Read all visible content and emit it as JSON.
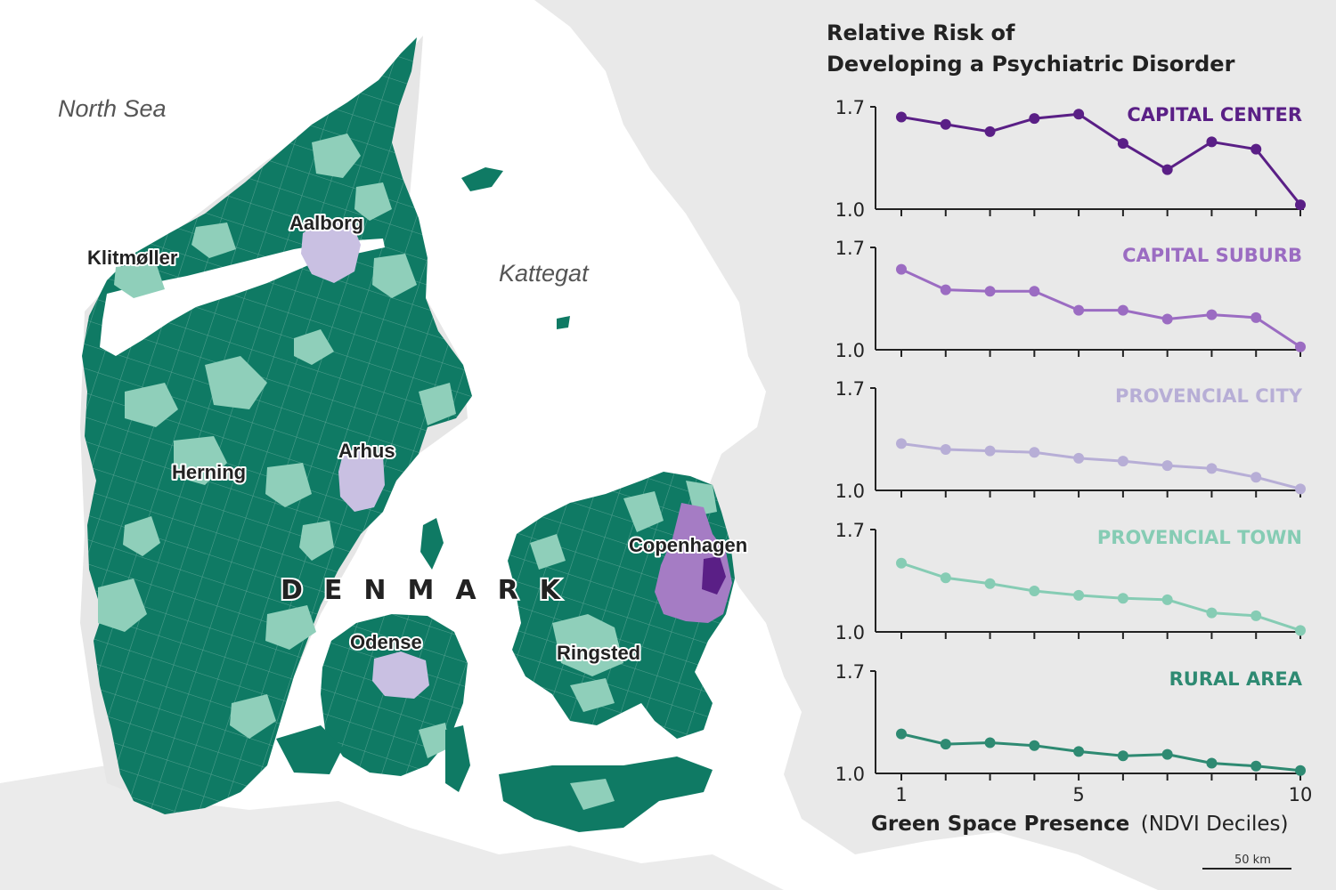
{
  "map": {
    "sea_labels": [
      "North Sea",
      "Kattegat"
    ],
    "country_label": "DENMARK",
    "cities": [
      "Aalborg",
      "Klitmøller",
      "Arhus",
      "Herning",
      "Copenhagen",
      "Odense",
      "Ringsted"
    ],
    "scale_bar": "50 km",
    "colors": {
      "rural_area": "#0f7a64",
      "provencial_town": "#8fcfba",
      "provencial_city": "#c9c0e2",
      "capital_suburb": "#a57cc4",
      "capital_center": "#5a1f86",
      "land": "#e8e8e8"
    }
  },
  "chart": {
    "title_line1": "Relative Risk of",
    "title_line2": "Developing a Psychiatric Disorder",
    "xlabel_bold": "Green Space Presence",
    "xlabel_regular": "(NDVI Deciles)"
  },
  "chart_data": {
    "type": "line",
    "title": "Relative Risk of Developing a Psychiatric Disorder",
    "xlabel": "Green Space Presence (NDVI Deciles)",
    "x": [
      1,
      2,
      3,
      4,
      5,
      6,
      7,
      8,
      9,
      10
    ],
    "x_ticks": [
      "1",
      "5",
      "10"
    ],
    "ylim": [
      1.0,
      1.7
    ],
    "y_ticks": [
      "1.7",
      "1.0"
    ],
    "grid": false,
    "panels": [
      {
        "name": "CAPITAL CENTER",
        "color": "#5a1f86",
        "values": [
          1.63,
          1.58,
          1.53,
          1.62,
          1.65,
          1.45,
          1.27,
          1.46,
          1.41,
          1.03
        ]
      },
      {
        "name": "CAPITAL SUBURB",
        "color": "#9b6cc2",
        "values": [
          1.55,
          1.41,
          1.4,
          1.4,
          1.27,
          1.27,
          1.21,
          1.24,
          1.22,
          1.02
        ]
      },
      {
        "name": "PROVENCIAL CITY",
        "color": "#b7aed6",
        "values": [
          1.32,
          1.28,
          1.27,
          1.26,
          1.22,
          1.2,
          1.17,
          1.15,
          1.09,
          1.01
        ]
      },
      {
        "name": "PROVENCIAL TOWN",
        "color": "#86ccb4",
        "values": [
          1.47,
          1.37,
          1.33,
          1.28,
          1.25,
          1.23,
          1.22,
          1.13,
          1.11,
          1.01
        ]
      },
      {
        "name": "RURAL AREA",
        "color": "#2e8a72",
        "values": [
          1.27,
          1.2,
          1.21,
          1.19,
          1.15,
          1.12,
          1.13,
          1.07,
          1.05,
          1.02
        ]
      }
    ]
  }
}
